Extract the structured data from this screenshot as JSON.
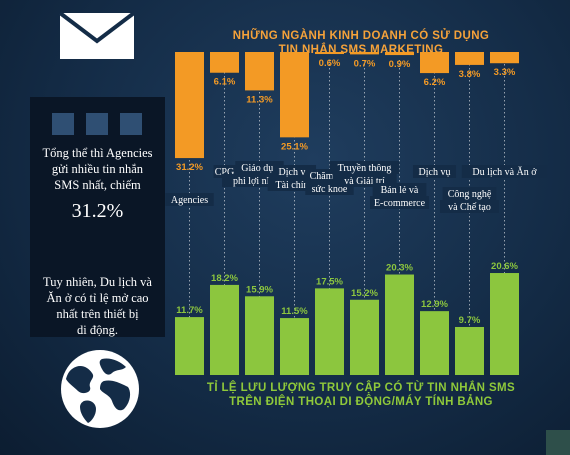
{
  "top_title": {
    "line1": "NHỮNG NGÀNH KINH DOANH CÓ SỬ DỤNG",
    "line2": "TIN NHẮN SMS MARKETING"
  },
  "bottom_title": {
    "line1": "TỈ LỆ LƯU LƯỢNG TRUY CẬP CÓ TỪ TIN NHẮN SMS",
    "line2": "TRÊN ĐIỆN THOẠI DI ĐỘNG/MÁY TÍNH BẢNG"
  },
  "side_panel": {
    "note1": [
      "Tổng thể thì Agencies",
      "gửi nhiều tin nhắn",
      "SMS nhất, chiếm"
    ],
    "big_value": "31.2%",
    "note2": [
      "Tuy nhiên, Du lịch và",
      "Ăn ở có tỉ lệ mở cao",
      "nhất trên thiết bị",
      "di động."
    ]
  },
  "icons": {
    "envelope": "envelope-icon",
    "globe": "globe-icon"
  },
  "colors": {
    "orange": "#f39a25",
    "green": "#8cc63e",
    "background": "#142c47"
  },
  "chart_data": [
    {
      "type": "bar",
      "title": "NHỮNG NGÀNH KINH DOANH CÓ SỬ DỤNG TIN NHẮN SMS MARKETING",
      "orientation": "hanging-down",
      "unit": "%",
      "categories": [
        [
          "Agencies"
        ],
        [
          "CPG"
        ],
        [
          "Giáo dục",
          "phi lợi nhuận"
        ],
        [
          "Dịch vụ",
          "Tài chính"
        ],
        [
          "Chăm sóc",
          "sức khỏe"
        ],
        [
          "Truyền thông",
          "và Giải trí"
        ],
        [
          "Bán lẻ và",
          "E-commerce"
        ],
        [
          "Dịch vụ"
        ],
        [
          "Công nghệ",
          "và Chế tạo"
        ],
        [
          "Du lịch và Ăn ở"
        ]
      ],
      "values": [
        31.2,
        6.1,
        11.3,
        25.1,
        0.6,
        0.7,
        0.9,
        6.2,
        3.8,
        3.3
      ],
      "labels": [
        "31.2%",
        "6.1%",
        "11.3%",
        "25.1%",
        "0.6%",
        "0.7%",
        "0.9%",
        "6.2%",
        "3.8%",
        "3.3%"
      ]
    },
    {
      "type": "bar",
      "title": "TỈ LỆ LƯU LƯỢNG TRUY CẬP CÓ TỪ TIN NHẮN SMS TRÊN ĐIỆN THOẠI DI ĐỘNG/MÁY TÍNH BẢNG",
      "unit": "%",
      "values": [
        11.7,
        18.2,
        15.9,
        11.5,
        17.5,
        15.2,
        20.3,
        12.9,
        9.7,
        20.6
      ],
      "labels": [
        "11.7%",
        "18.2%",
        "15.9%",
        "11.5%",
        "17.5%",
        "15.2%",
        "20.3%",
        "12.9%",
        "9.7%",
        "20.6%"
      ]
    }
  ]
}
